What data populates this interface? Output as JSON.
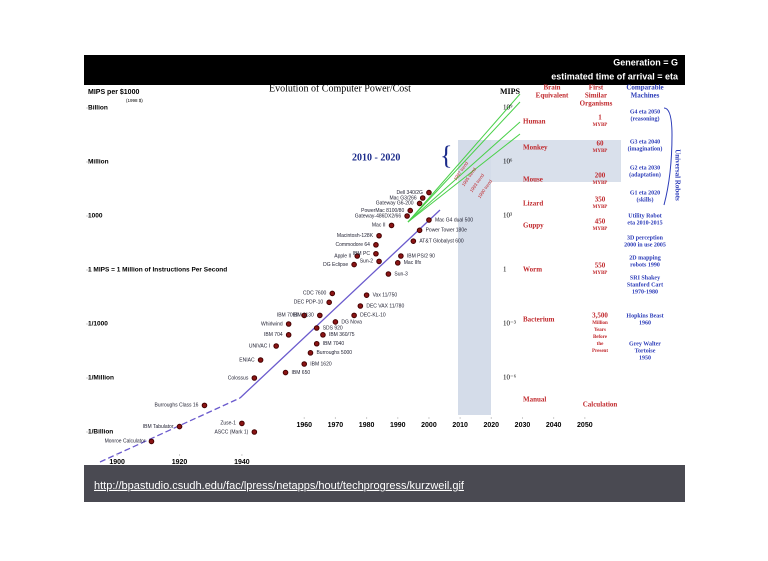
{
  "header": {
    "line1": "Generation = G",
    "line2": "estimated time of arrival = eta"
  },
  "chart_data": {
    "type": "scatter",
    "title": "Evolution of Computer Power/Cost",
    "y_label": "MIPS per $1000",
    "y_note": "(1998 $)",
    "log_y": true,
    "annotation": "2010 - 2020",
    "trend_labels": [
      "1997 trend",
      "1995 trend",
      "1993 trend",
      "1990 trend"
    ],
    "xlim": [
      1890,
      2060
    ],
    "xticks": [
      1900,
      1920,
      1940,
      1960,
      1970,
      1980,
      1990,
      2000,
      2010,
      2020,
      2030,
      2040,
      2050
    ],
    "ylim": [
      1e-10,
      10000000000.0
    ],
    "yticks": [
      {
        "value": 1000000000.0,
        "label": "Billion"
      },
      {
        "value": 1000000.0,
        "label": "Million"
      },
      {
        "value": 1000,
        "label": "1000"
      },
      {
        "value": 1,
        "label": "1 MIPS = 1 Million of Instructions Per Second"
      },
      {
        "value": 0.001,
        "label": "1/1000"
      },
      {
        "value": 1e-06,
        "label": "1/Million"
      },
      {
        "value": 1e-09,
        "label": "1/Billion"
      }
    ],
    "y2_label": "MIPS",
    "y2lim": [
      1e-10,
      10000000000.0
    ],
    "y2ticks": [
      {
        "value": 1000000000.0,
        "label": "10⁹"
      },
      {
        "value": 1000000.0,
        "label": "10⁶"
      },
      {
        "value": 1000,
        "label": "10³"
      },
      {
        "value": 1,
        "label": "1"
      },
      {
        "value": 0.001,
        "label": "10⁻³"
      },
      {
        "value": 1e-06,
        "label": "10⁻⁶"
      }
    ],
    "color": "#8b1414",
    "labels": [
      "Monroe Calculator",
      "IBM Tabulator",
      "Burroughs Class 16",
      "Zuse-1",
      "ASCC (Mark 1)",
      "Colossus",
      "ENIAC",
      "UNIVAC I",
      "IBM 704",
      "Whirlwind",
      "IBM 7090",
      "IBM 1130",
      "DEC PDP-10",
      "CDC 7600",
      "DG Eclipse",
      "Apple II",
      "IBM PC",
      "Sun-2",
      "Commodore 64",
      "Macintosh-128K",
      "Mac II",
      "Gateway-486DX2/66",
      "PowerMac 8100/80",
      "Gateway G6-200",
      "Mac G3/266",
      "Dell 340/2G",
      "Mac G4 dual 500",
      "Power Tower 180e",
      "AT&T Globalyst 600",
      "IBM PS/2 90",
      "Mac IIfx",
      "Sun-3",
      "Vax 11/750",
      "DEC VAX 11/780",
      "DEC-KL-10",
      "DG Nova",
      "SDS 920",
      "IBM 360/75",
      "IBM 7040",
      "Burroughs 5000",
      "IBM 1620",
      "IBM 650"
    ],
    "x": [
      1911,
      1920,
      1928,
      1940,
      1944,
      1944,
      1946,
      1951,
      1955,
      1955,
      1960,
      1965,
      1968,
      1969,
      1976,
      1977,
      1983,
      1984,
      1983,
      1984,
      1988,
      1993,
      1994,
      1997,
      1998,
      2000,
      2000,
      1997,
      1995,
      1991,
      1990,
      1987,
      1980,
      1978,
      1976,
      1970,
      1964,
      1966,
      1964,
      1962,
      1960,
      1954
    ],
    "values": [
      3e-10,
      2e-09,
      3e-08,
      3e-09,
      1e-09,
      1e-06,
      1e-05,
      6e-05,
      0.00025,
      0.001,
      0.003,
      0.003,
      0.016,
      0.05,
      2,
      6,
      8,
      3,
      25,
      80,
      300,
      1000,
      2000,
      5000,
      10000,
      20000,
      600,
      160,
      40,
      6,
      2.5,
      0.6,
      0.04,
      0.01,
      0.003,
      0.0013,
      0.0006,
      0.00025,
      8e-05,
      2.5e-05,
      6e-06,
      2e-06
    ]
  },
  "right_panel": {
    "brain": [
      "Brain",
      "Equivalent"
    ],
    "organisms_head": [
      "First",
      "Similar",
      "Organisms"
    ],
    "machines_head": [
      "Comparable",
      "Machines"
    ],
    "organisms": [
      {
        "name": "Human",
        "age": [
          "1",
          "MYBP"
        ]
      },
      {
        "name": "Monkey",
        "age": [
          "60",
          "MYBP"
        ]
      },
      {
        "name": "Mouse",
        "age": [
          "200",
          "MYBP"
        ]
      },
      {
        "name": "Lizard",
        "age": [
          "350",
          "MYBP"
        ]
      },
      {
        "name": "Guppy",
        "age": [
          "450",
          "MYBP"
        ]
      },
      {
        "name": "Worm",
        "age": [
          "550",
          "MYBP"
        ]
      },
      {
        "name": "Bacterium",
        "age": [
          "3,500",
          "Million",
          "Years",
          "Before",
          "the",
          "Present"
        ]
      },
      {
        "name": "Manual",
        "age": [
          "Calculation"
        ]
      }
    ],
    "machines": [
      [
        "G4 eta 2050",
        "(reasoning)"
      ],
      [
        "G3 eta 2040",
        "(imagination)"
      ],
      [
        "G2 eta 2030",
        "(adaptation)"
      ],
      [
        "G1 eta 2020",
        "(skills)"
      ],
      [
        "Utility Robot",
        "eta 2010-2015"
      ],
      [
        "3D perception",
        "2000 in use 2005"
      ],
      [
        "2D mapping",
        "robots 1990"
      ],
      [
        "SRI Shakey",
        "Stanford Cart",
        "1970-1980"
      ],
      [
        "Hopkins Beast",
        "1960"
      ],
      [
        "Grey Walter",
        "Tortoise",
        "1950"
      ]
    ],
    "vertical": "Universal Robots"
  },
  "footer": "http://bpastudio.csudh.edu/fac/lpress/netapps/hout/techprogress/kurzweil.gif"
}
